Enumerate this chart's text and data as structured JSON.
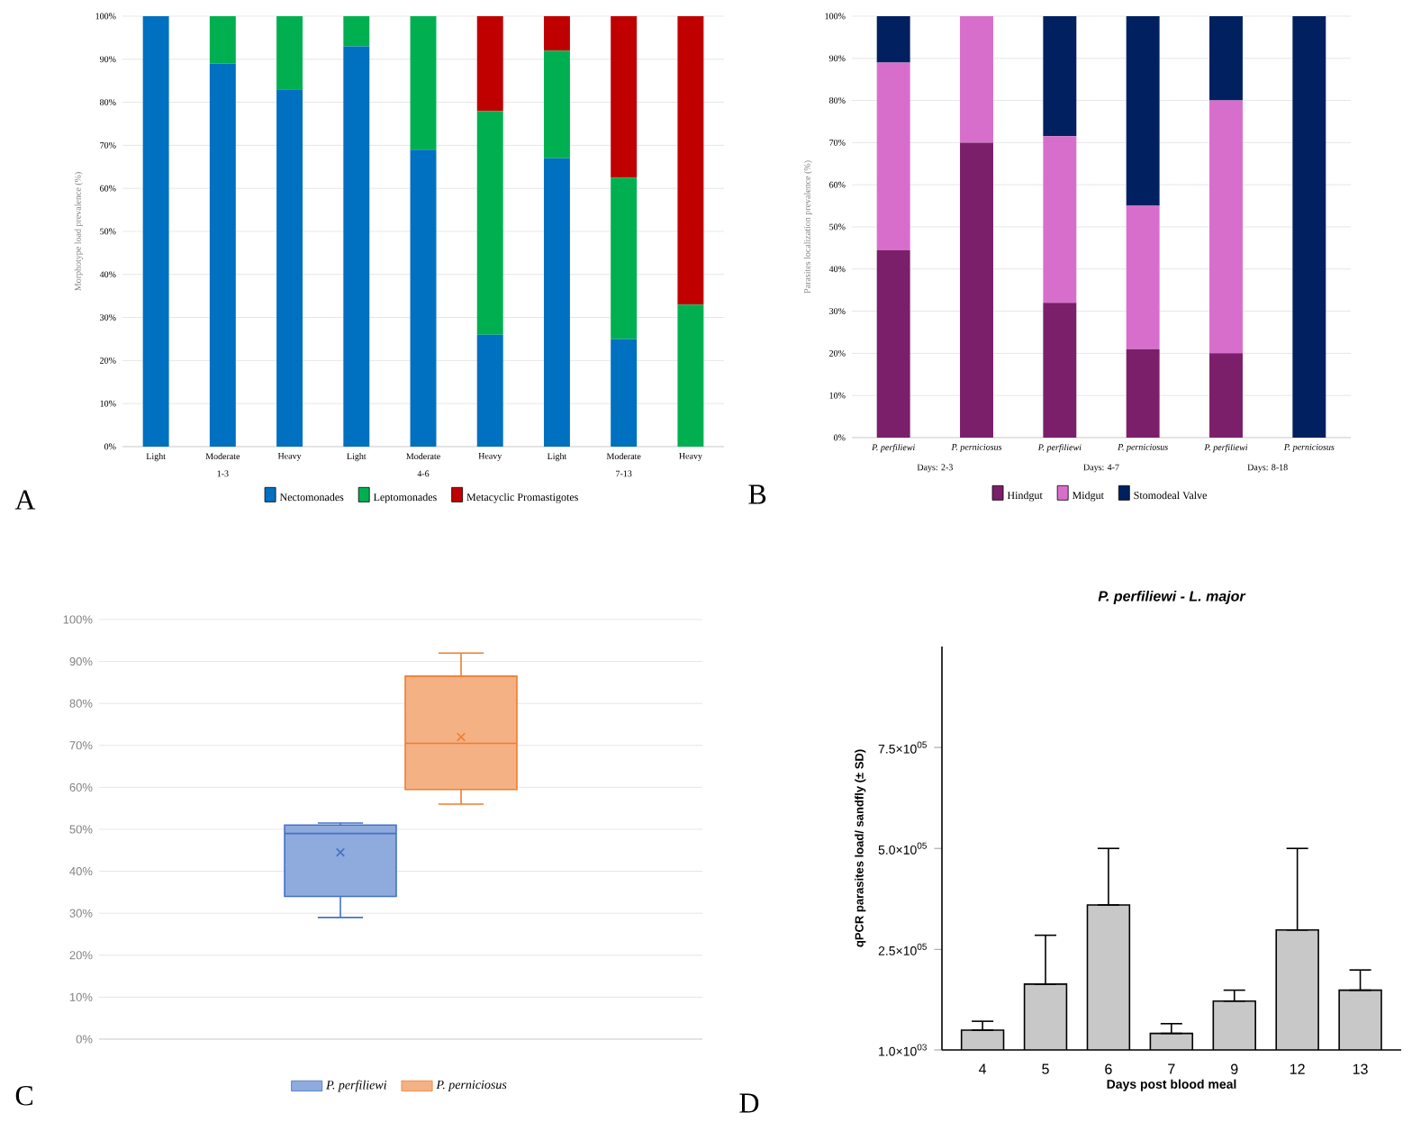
{
  "chart_data": [
    {
      "type": "bar",
      "stacked": true,
      "ylabel": "Morphotype load prevalence (%)",
      "categories": [
        "Light",
        "Moderate",
        "Heavy",
        "Light",
        "Moderate",
        "Heavy",
        "Light",
        "Moderate",
        "Heavy"
      ],
      "series": [
        {
          "name": "Nectomonades",
          "color": "#0070c0",
          "values": [
            100,
            89,
            83,
            93,
            69,
            26,
            67,
            25,
            0
          ]
        },
        {
          "name": "Leptomonades",
          "color": "#00b050",
          "values": [
            0,
            11,
            17,
            7,
            31,
            52,
            25,
            37.5,
            33
          ]
        },
        {
          "name": "Metacyclic Promastigotes",
          "color": "#c00000",
          "values": [
            0,
            0,
            0,
            0,
            0,
            22,
            8,
            37.5,
            67
          ]
        }
      ],
      "ylim": [
        0,
        100
      ],
      "yticks": [
        {
          "value": 0,
          "label": "0%"
        },
        {
          "value": 10,
          "label": "10%"
        },
        {
          "value": 20,
          "label": "20%"
        },
        {
          "value": 30,
          "label": "30%"
        },
        {
          "value": 40,
          "label": "40%"
        },
        {
          "value": 50,
          "label": "50%"
        },
        {
          "value": 60,
          "label": "60%"
        },
        {
          "value": 70,
          "label": "70%"
        },
        {
          "value": 80,
          "label": "80%"
        },
        {
          "value": 90,
          "label": "90%"
        },
        {
          "value": 100,
          "label": "100%"
        }
      ],
      "grid": "y",
      "legend": "bottom",
      "annotations": [
        "A",
        "1-3",
        "4-6",
        "7-13"
      ]
    },
    {
      "type": "bar",
      "stacked": true,
      "ylabel": "Parasites localization prevalence (%)",
      "categories": [
        "P. perfiliewi",
        "P. perniciosus",
        "P. perfiliewi",
        "P. perniciosus",
        "P. perfiliewi",
        "P. perniciosus"
      ],
      "series": [
        {
          "name": "Hindgut",
          "color": "#7b1f6a",
          "values": [
            44.5,
            70,
            32,
            21,
            20,
            0
          ]
        },
        {
          "name": "Midgut",
          "color": "#d86ecc",
          "values": [
            44.5,
            30,
            39.5,
            34,
            60,
            0
          ]
        },
        {
          "name": "Stomodeal Valve",
          "color": "#002060",
          "values": [
            11,
            0,
            28.5,
            45,
            20,
            100
          ]
        }
      ],
      "ylim": [
        0,
        100
      ],
      "yticks": [
        {
          "value": 0,
          "label": "0%"
        },
        {
          "value": 10,
          "label": "10%"
        },
        {
          "value": 20,
          "label": "20%"
        },
        {
          "value": 30,
          "label": "30%"
        },
        {
          "value": 40,
          "label": "40%"
        },
        {
          "value": 50,
          "label": "50%"
        },
        {
          "value": 60,
          "label": "60%"
        },
        {
          "value": 70,
          "label": "70%"
        },
        {
          "value": 80,
          "label": "80%"
        },
        {
          "value": 90,
          "label": "90%"
        },
        {
          "value": 100,
          "label": "100%"
        }
      ],
      "grid": "y",
      "legend": "bottom",
      "annotations": [
        "B",
        "Days: 2-3",
        "Days: 4-7",
        "Days: 8-18"
      ]
    },
    {
      "type": "box",
      "categories": [
        null
      ],
      "series": [
        {
          "name": "P. perfiliewi",
          "color": "#4472c4",
          "boxes": [
            {
              "low": 29,
              "q1": 34,
              "median": 49,
              "q3": 51,
              "high": 51.5,
              "mean": 44.5
            }
          ]
        },
        {
          "name": "P. perniciosus",
          "color": "#ed7d31",
          "boxes": [
            {
              "low": 56,
              "q1": 59.5,
              "median": 70.5,
              "q3": 86.5,
              "high": 92,
              "mean": 72
            }
          ]
        }
      ],
      "ylim": [
        0,
        100
      ],
      "yticks": [
        {
          "value": 0,
          "label": "0%"
        },
        {
          "value": 10,
          "label": "10%"
        },
        {
          "value": 20,
          "label": "20%"
        },
        {
          "value": 30,
          "label": "30%"
        },
        {
          "value": 40,
          "label": "40%"
        },
        {
          "value": 50,
          "label": "50%"
        },
        {
          "value": 60,
          "label": "60%"
        },
        {
          "value": 70,
          "label": "70%"
        },
        {
          "value": 80,
          "label": "80%"
        },
        {
          "value": 90,
          "label": "90%"
        },
        {
          "value": 100,
          "label": "100%"
        }
      ],
      "grid": "y",
      "legend": "bottom",
      "marker": "cross",
      "annotations": [
        "C"
      ]
    },
    {
      "type": "bar",
      "title": "P. perfiliewi - L. major",
      "xlabel": "Days post blood meal",
      "ylabel": "qPCR parasites load/ sandfly (± SD)",
      "categories": [
        "4",
        "5",
        "6",
        "7",
        "9",
        "12",
        "13"
      ],
      "values": [
        50000,
        164000,
        360000,
        42000,
        122000,
        298000,
        149000
      ],
      "errors": [
        [
          50000,
          72000
        ],
        [
          164000,
          285000
        ],
        [
          360000,
          500000
        ],
        [
          42000,
          66000
        ],
        [
          122000,
          149000
        ],
        [
          298000,
          500000
        ],
        [
          149000,
          199000
        ]
      ],
      "color": "#c8c8c8",
      "ylim": [
        1000,
        1000000
      ],
      "yticks": [
        {
          "value": 1000,
          "label": "1.0×10$^{03}$"
        },
        {
          "value": 250000,
          "label": "2.5×10$^{05}$"
        },
        {
          "value": 500000,
          "label": "5.0×10$^{05}$"
        },
        {
          "value": 750000,
          "label": "7.5×10$^{05}$"
        }
      ],
      "annotations": [
        "D"
      ]
    }
  ]
}
